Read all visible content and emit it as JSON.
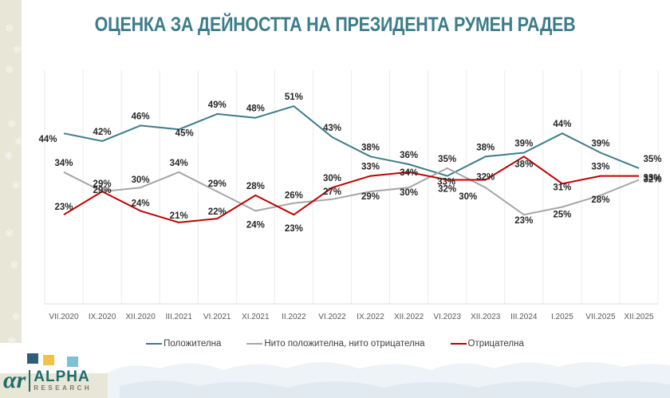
{
  "title": "ОЦЕНКА ЗА ДЕЙНОСТТА НА ПРЕЗИДЕНТА РУМЕН РАДЕВ",
  "brand": {
    "logo_name": "ALPHA",
    "logo_sub": "RESEARCH",
    "logo_mark": "αr"
  },
  "chart_data": {
    "type": "line",
    "title": "ОЦЕНКА ЗА ДЕЙНОСТТА НА ПРЕЗИДЕНТА РУМЕН РАДЕВ",
    "xlabel": "",
    "ylabel": "",
    "ylim": [
      0,
      60
    ],
    "grid": "vertical",
    "legend_position": "bottom",
    "categories": [
      "VII.2020",
      "IX.2020",
      "XII.2020",
      "III.2021",
      "VI.2021",
      "XI.2021",
      "II.2022",
      "VI.2022",
      "IX.2022",
      "XII.2022",
      "VI.2023",
      "XII.2023",
      "III.2024",
      "I.2025",
      "VII.2025",
      "XII.2025"
    ],
    "series": [
      {
        "name": "Положителна",
        "color": "#3c7d8a",
        "values": [
          44,
          42,
          46,
          45,
          49,
          48,
          51,
          43,
          38,
          36,
          33,
          38,
          39,
          44,
          39,
          35
        ]
      },
      {
        "name": "Нито положителна, нито отрицателна",
        "color": "#a6a6a6",
        "values": [
          34,
          29,
          30,
          34,
          29,
          24,
          26,
          27,
          29,
          30,
          35,
          30,
          23,
          25,
          28,
          32
        ]
      },
      {
        "name": "Отрицателна",
        "color": "#c00000",
        "values": [
          23,
          29,
          24,
          21,
          22,
          28,
          23,
          30,
          33,
          34,
          32,
          32,
          38,
          31,
          33,
          33
        ]
      }
    ],
    "value_suffix": "%"
  }
}
